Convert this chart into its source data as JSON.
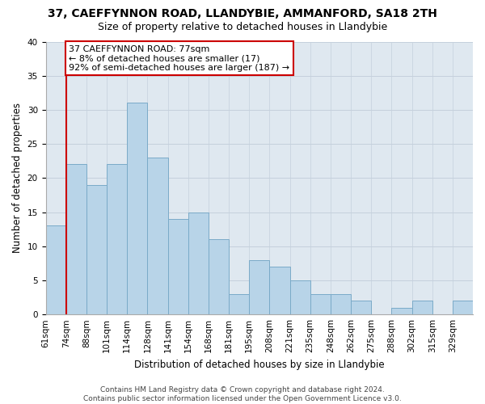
{
  "title": "37, CAEFFYNNON ROAD, LLANDYBIE, AMMANFORD, SA18 2TH",
  "subtitle": "Size of property relative to detached houses in Llandybie",
  "xlabel": "Distribution of detached houses by size in Llandybie",
  "ylabel": "Number of detached properties",
  "bin_labels": [
    "61sqm",
    "74sqm",
    "88sqm",
    "101sqm",
    "114sqm",
    "128sqm",
    "141sqm",
    "154sqm",
    "168sqm",
    "181sqm",
    "195sqm",
    "208sqm",
    "221sqm",
    "235sqm",
    "248sqm",
    "262sqm",
    "275sqm",
    "288sqm",
    "302sqm",
    "315sqm",
    "329sqm"
  ],
  "bar_heights": [
    13,
    22,
    19,
    22,
    31,
    23,
    14,
    15,
    11,
    3,
    8,
    7,
    5,
    3,
    3,
    2,
    0,
    1,
    2,
    0,
    2
  ],
  "bar_color": "#b8d4e8",
  "bar_edge_color": "#7aaac8",
  "ylim": [
    0,
    40
  ],
  "yticks": [
    0,
    5,
    10,
    15,
    20,
    25,
    30,
    35,
    40
  ],
  "annotation_line1": "37 CAEFFYNNON ROAD: 77sqm",
  "annotation_line2": "← 8% of detached houses are smaller (17)",
  "annotation_line3": "92% of semi-detached houses are larger (187) →",
  "red_line_color": "#cc0000",
  "background_color": "#ffffff",
  "plot_bg_color": "#dfe8f0",
  "grid_color": "#c5d0dc",
  "footer_text": "Contains HM Land Registry data © Crown copyright and database right 2024.\nContains public sector information licensed under the Open Government Licence v3.0.",
  "title_fontsize": 10,
  "subtitle_fontsize": 9,
  "axis_label_fontsize": 8.5,
  "tick_fontsize": 7.5,
  "annotation_fontsize": 8,
  "footer_fontsize": 6.5
}
